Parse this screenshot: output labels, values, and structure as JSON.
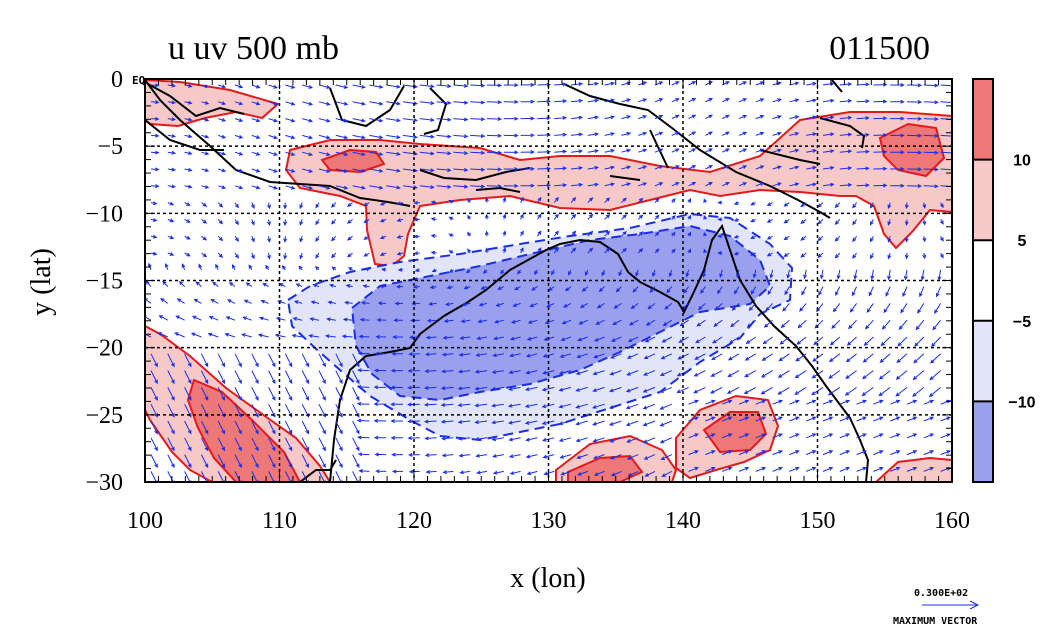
{
  "chart_data": {
    "type": "heatmap",
    "title_left": "u uv 500 mb",
    "title_right": "011500",
    "xlabel": "x (lon)",
    "ylabel": "y (lat)",
    "xlim": [
      100,
      160
    ],
    "ylim": [
      -30,
      0
    ],
    "x_ticks": [
      "100",
      "110",
      "120",
      "130",
      "140",
      "150",
      "160"
    ],
    "y_ticks": [
      "0",
      "−5",
      "−10",
      "−15",
      "−20",
      "−25",
      "−30"
    ],
    "grid": true,
    "colorbar": {
      "levels": [
        "10",
        "5",
        "−5",
        "−10"
      ],
      "colors": [
        "#ee7777",
        "#f6c8c8",
        "#ffffff",
        "#e2e4f8",
        "#9aa0ee"
      ]
    },
    "eq_label": "EQ",
    "vector_legend": {
      "value": "0.300E+02",
      "label": "MAXIMUM VECTOR"
    }
  }
}
